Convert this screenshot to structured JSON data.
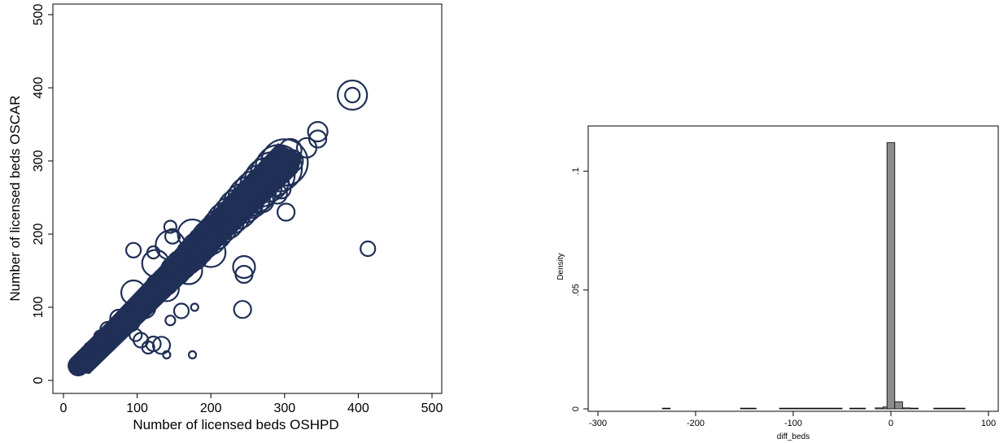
{
  "chart_data": [
    {
      "type": "scatter",
      "marker": "hollow-circle",
      "series_color": "#1f2f56",
      "xlabel": "Number of licensed beds OSHPD",
      "ylabel": "Number of licensed beds OSCAR",
      "xlim": [
        0,
        500
      ],
      "ylim": [
        0,
        500
      ],
      "xticks": [
        "0",
        "100",
        "200",
        "300",
        "400",
        "500"
      ],
      "yticks": [
        "0",
        "100",
        "200",
        "300",
        "400",
        "500"
      ],
      "grid": false,
      "dense_band": {
        "from": [
          20,
          20
        ],
        "to": [
          300,
          300
        ],
        "note": "heavy overlap of markers along the diagonal"
      },
      "points": [
        [
          20,
          20,
          3
        ],
        [
          25,
          24,
          4
        ],
        [
          32,
          30,
          5
        ],
        [
          40,
          38,
          5
        ],
        [
          48,
          45,
          6
        ],
        [
          55,
          52,
          6
        ],
        [
          62,
          60,
          7
        ],
        [
          70,
          66,
          7
        ],
        [
          78,
          74,
          8
        ],
        [
          85,
          82,
          8
        ],
        [
          92,
          90,
          9
        ],
        [
          100,
          98,
          9
        ],
        [
          108,
          105,
          10
        ],
        [
          115,
          112,
          10
        ],
        [
          122,
          120,
          10
        ],
        [
          130,
          128,
          11
        ],
        [
          138,
          135,
          11
        ],
        [
          145,
          142,
          11
        ],
        [
          152,
          150,
          12
        ],
        [
          160,
          158,
          12
        ],
        [
          168,
          165,
          12
        ],
        [
          175,
          172,
          13
        ],
        [
          182,
          180,
          13
        ],
        [
          190,
          188,
          13
        ],
        [
          198,
          195,
          14
        ],
        [
          205,
          202,
          14
        ],
        [
          212,
          210,
          14
        ],
        [
          220,
          218,
          15
        ],
        [
          228,
          226,
          15
        ],
        [
          236,
          234,
          16
        ],
        [
          244,
          242,
          16
        ],
        [
          252,
          250,
          17
        ],
        [
          260,
          258,
          17
        ],
        [
          268,
          266,
          17
        ],
        [
          276,
          274,
          18
        ],
        [
          284,
          282,
          18
        ],
        [
          292,
          290,
          19
        ],
        [
          300,
          298,
          19
        ],
        [
          90,
          80,
          8
        ],
        [
          110,
          100,
          9
        ],
        [
          140,
          125,
          10
        ],
        [
          170,
          150,
          11
        ],
        [
          200,
          175,
          12
        ],
        [
          75,
          85,
          7
        ],
        [
          95,
          120,
          10
        ],
        [
          125,
          160,
          11
        ],
        [
          145,
          185,
          12
        ],
        [
          175,
          200,
          12
        ],
        [
          98,
          62,
          5
        ],
        [
          105,
          55,
          6
        ],
        [
          115,
          45,
          5
        ],
        [
          122,
          50,
          6
        ],
        [
          133,
          48,
          7
        ],
        [
          140,
          35,
          3
        ],
        [
          175,
          35,
          3
        ],
        [
          160,
          95,
          6
        ],
        [
          178,
          100,
          3
        ],
        [
          145,
          82,
          4
        ],
        [
          145,
          210,
          5
        ],
        [
          95,
          178,
          6
        ],
        [
          122,
          175,
          5
        ],
        [
          148,
          197,
          6
        ],
        [
          245,
          155,
          9
        ],
        [
          245,
          145,
          7
        ],
        [
          243,
          97,
          7
        ],
        [
          255,
          238,
          8
        ],
        [
          270,
          245,
          9
        ],
        [
          290,
          255,
          8
        ],
        [
          302,
          230,
          7
        ],
        [
          295,
          262,
          8
        ],
        [
          310,
          300,
          9
        ],
        [
          308,
          315,
          9
        ],
        [
          330,
          318,
          8
        ],
        [
          345,
          340,
          8
        ],
        [
          345,
          330,
          7
        ],
        [
          392,
          390,
          12
        ],
        [
          392,
          390,
          6
        ],
        [
          413,
          180,
          6
        ],
        [
          60,
          70,
          6
        ],
        [
          45,
          42,
          5
        ],
        [
          35,
          45,
          4
        ],
        [
          50,
          60,
          5
        ]
      ]
    },
    {
      "type": "bar",
      "subtype": "histogram",
      "bar_color": "#8c8c8c",
      "xlabel": "diff_beds",
      "ylabel": "Density",
      "xlim": [
        -310,
        110
      ],
      "ylim": [
        0,
        0.118
      ],
      "xticks": [
        "-300",
        "-200",
        "-100",
        "0",
        "100"
      ],
      "yticks": [
        "0",
        ".05",
        ".1"
      ],
      "bin_width": 8,
      "grid": false,
      "bins": [
        {
          "x": -230,
          "y": 0.0003
        },
        {
          "x": -150,
          "y": 0.0003
        },
        {
          "x": -142,
          "y": 0.0003
        },
        {
          "x": -110,
          "y": 0.0003
        },
        {
          "x": -102,
          "y": 0.0003
        },
        {
          "x": -94,
          "y": 0.0003
        },
        {
          "x": -86,
          "y": 0.0003
        },
        {
          "x": -78,
          "y": 0.0003
        },
        {
          "x": -70,
          "y": 0.0003
        },
        {
          "x": -62,
          "y": 0.0003
        },
        {
          "x": -54,
          "y": 0.0003
        },
        {
          "x": -38,
          "y": 0.0003
        },
        {
          "x": -30,
          "y": 0.0003
        },
        {
          "x": -12,
          "y": 0.0004
        },
        {
          "x": -4,
          "y": 0.0008
        },
        {
          "x": 0,
          "y": 0.112
        },
        {
          "x": 8,
          "y": 0.003
        },
        {
          "x": 16,
          "y": 0.0004
        },
        {
          "x": 24,
          "y": 0.0003
        },
        {
          "x": 48,
          "y": 0.0003
        },
        {
          "x": 56,
          "y": 0.0003
        },
        {
          "x": 64,
          "y": 0.0003
        },
        {
          "x": 72,
          "y": 0.0003
        }
      ]
    }
  ]
}
